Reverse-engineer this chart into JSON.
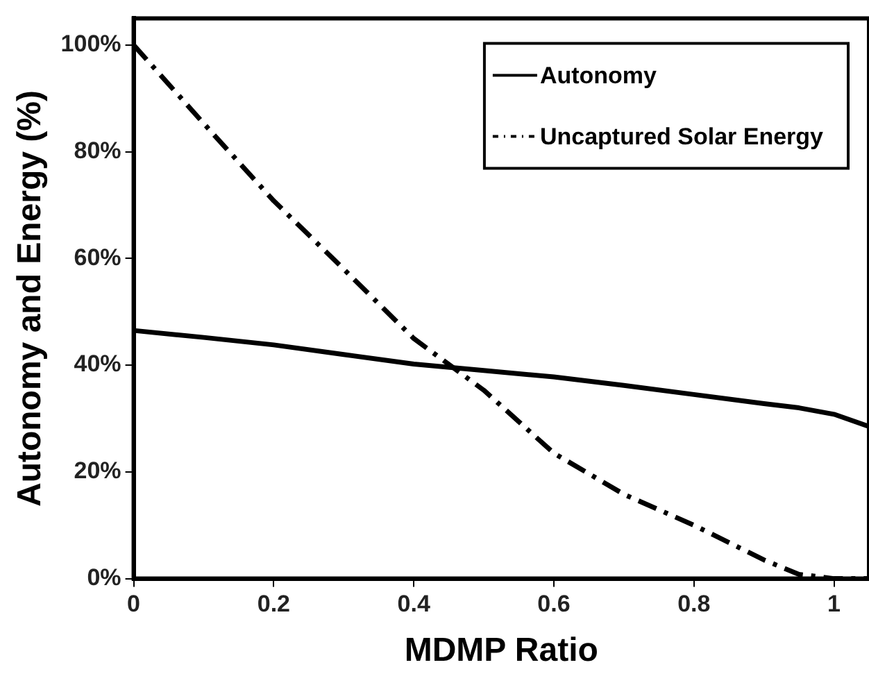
{
  "chart_data": {
    "type": "line",
    "xlabel": "MDMP Ratio",
    "ylabel": "Autonomy and Energy (%)",
    "x": [
      0,
      0.1,
      0.2,
      0.3,
      0.4,
      0.5,
      0.6,
      0.7,
      0.8,
      0.9,
      0.95,
      1,
      1.05
    ],
    "series": [
      {
        "name": "Autonomy",
        "color": "#000000",
        "line_style": "solid",
        "values": [
          46.5,
          45.2,
          43.8,
          42,
          40.2,
          39,
          37.8,
          36.2,
          34.5,
          32.8,
          32,
          30.8,
          28.5
        ]
      },
      {
        "name": "Uncaptured Solar Energy",
        "color": "#000000",
        "line_style": "dashed",
        "values": [
          100,
          85.3,
          70.8,
          58,
          45,
          35.3,
          23.5,
          15.8,
          10,
          3.5,
          0.8,
          0,
          0
        ]
      }
    ],
    "xlim": [
      0,
      1.05
    ],
    "xticks": [
      0,
      0.2,
      0.4,
      0.6,
      0.8,
      1
    ],
    "ylim": [
      0,
      105
    ],
    "yticks": [
      {
        "value": 0,
        "label": "0%"
      },
      {
        "value": 20,
        "label": "20%"
      },
      {
        "value": 40,
        "label": "40%"
      },
      {
        "value": 60,
        "label": "60%"
      },
      {
        "value": 80,
        "label": "80%"
      },
      {
        "value": 100,
        "label": "100%"
      }
    ],
    "grid": false,
    "legend": "top right",
    "marker": "none"
  }
}
